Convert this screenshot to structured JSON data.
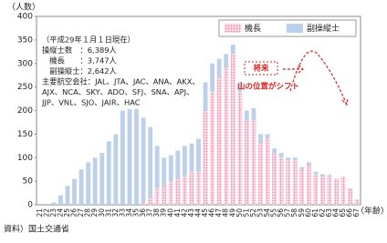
{
  "chart_data": {
    "type": "stacked_bar",
    "y_label": "（人数）",
    "x_label": "（年齢）",
    "source": "資料）国土交通省",
    "annotations": [
      "（平成29年１月１日現在）",
      "操縦士数　：6,389人",
      "　機長　　：3,747人",
      "　副操縦士：2,642人",
      "主要航空会社：JAL、JTA、JAC、ANA、AKX、",
      "AJX、NCA、SKY、ADO、SFJ、SNA、APJ、",
      "JJP、VNL、SJO、JAIR、HAC"
    ],
    "callouts": [
      "将来",
      "山の位置がシフト"
    ],
    "categories": [
      "21",
      "22",
      "23",
      "24",
      "25",
      "26",
      "27",
      "28",
      "29",
      "30",
      "31",
      "32",
      "33",
      "34",
      "35",
      "36",
      "37",
      "38",
      "39",
      "40",
      "41",
      "42",
      "43",
      "44",
      "45",
      "46",
      "47",
      "48",
      "49",
      "50",
      "51",
      "52",
      "53",
      "54",
      "55",
      "56",
      "57",
      "58",
      "59",
      "60",
      "61",
      "62",
      "63",
      "64",
      "65",
      "66",
      "67"
    ],
    "series": [
      {
        "name": "機長",
        "color": "#ee8fb0",
        "values": [
          0,
          0,
          0,
          0,
          0,
          0,
          0,
          0,
          0,
          0,
          0,
          0,
          0,
          0,
          0,
          5,
          15,
          35,
          40,
          50,
          55,
          60,
          70,
          70,
          200,
          240,
          270,
          290,
          320,
          240,
          180,
          180,
          130,
          140,
          110,
          100,
          95,
          95,
          75,
          85,
          65,
          60,
          65,
          55,
          60,
          35,
          12
        ]
      },
      {
        "name": "副操縦士",
        "color": "#bcd0ec",
        "values": [
          0,
          2,
          5,
          20,
          40,
          55,
          75,
          90,
          100,
          110,
          135,
          150,
          200,
          205,
          215,
          180,
          150,
          90,
          60,
          55,
          60,
          65,
          60,
          70,
          60,
          60,
          40,
          30,
          20,
          20,
          20,
          25,
          20,
          10,
          10,
          10,
          5,
          5,
          5,
          5,
          5,
          5,
          0,
          0,
          0,
          0,
          0
        ]
      }
    ],
    "ylim": [
      0,
      400
    ],
    "yticks": [
      0,
      50,
      100,
      150,
      200,
      250,
      300,
      350,
      400
    ],
    "legend": "top-right"
  }
}
